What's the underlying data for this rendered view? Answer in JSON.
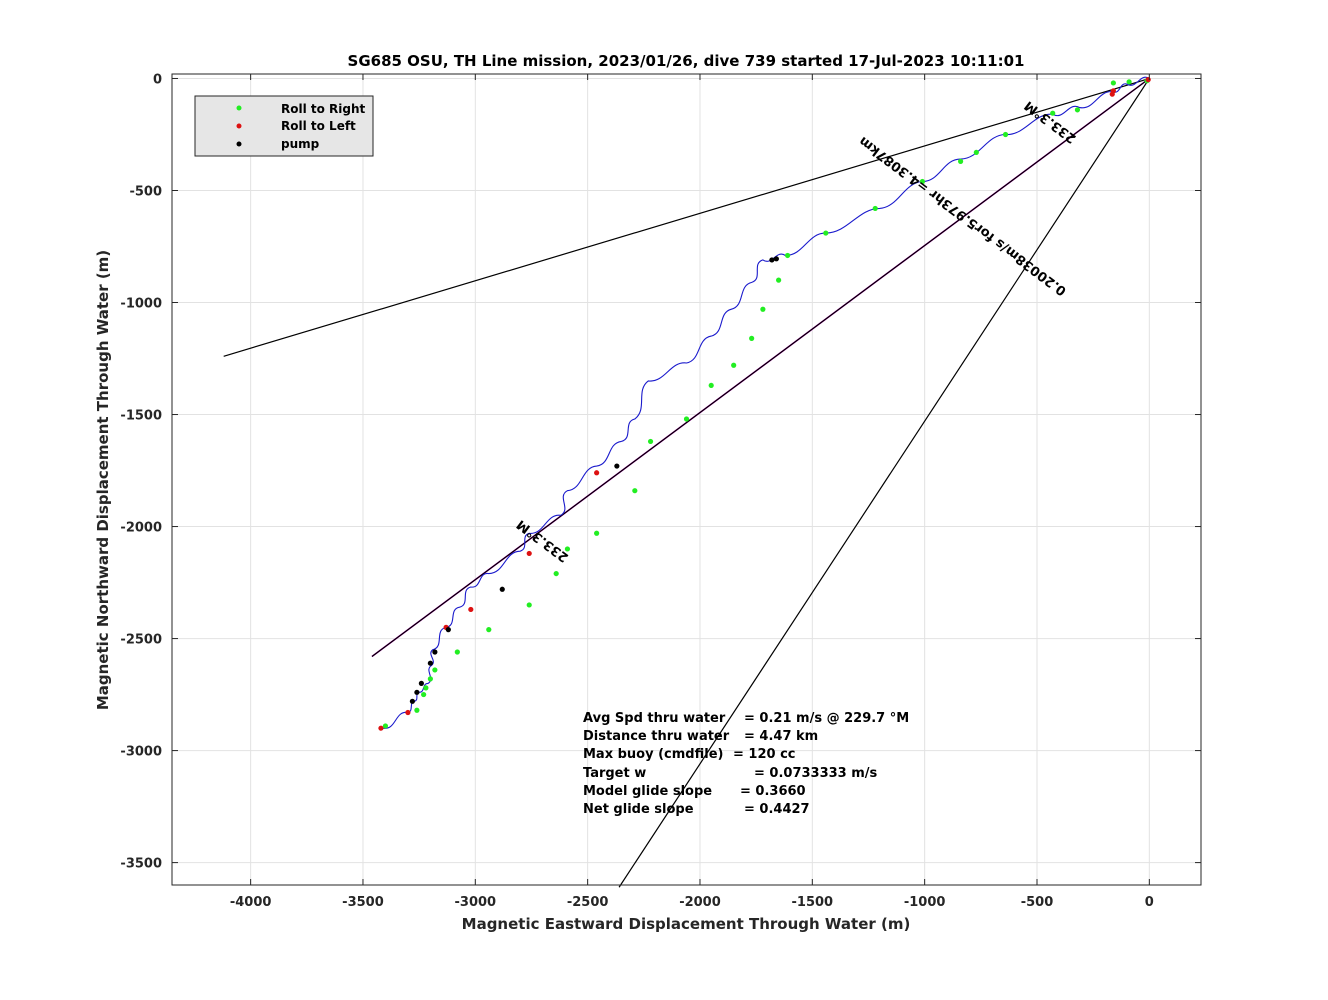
{
  "chart_data": {
    "type": "line",
    "title": "SG685 OSU, TH Line mission, 2023/01/26, dive 739 started 17-Jul-2023 10:11:01",
    "xlabel": "Magnetic Eastward Displacement Through Water (m)",
    "ylabel": "Magnetic Northward Displacement Through Water (m)",
    "xlim": [
      -4350,
      230
    ],
    "ylim": [
      -3600,
      20
    ],
    "xticks": [
      -4000,
      -3500,
      -3000,
      -2500,
      -2000,
      -1500,
      -1000,
      -500,
      0
    ],
    "yticks": [
      0,
      -500,
      -1000,
      -1500,
      -2000,
      -2500,
      -3000,
      -3500
    ],
    "grid": true,
    "legend_position": "top-left",
    "legend": [
      {
        "label": "Roll to Right",
        "color": "#22ee22"
      },
      {
        "label": "Roll to Left",
        "color": "#dd1111"
      },
      {
        "label": "pump",
        "color": "#000000"
      }
    ],
    "colors": {
      "track": "#1a1acc",
      "net": "#cc00cc",
      "bounds": "#000000"
    },
    "track": {
      "name": "",
      "x": [
        0,
        -100,
        -160,
        -310,
        -430,
        -640,
        -840,
        -1010,
        -1200,
        -1440,
        -1620,
        -1720,
        -1770,
        -1860,
        -1950,
        -2060,
        -2230,
        -2290,
        -2350,
        -2460,
        -2590,
        -2620,
        -2760,
        -2800,
        -2940,
        -3020,
        -3070,
        -3130,
        -3190,
        -3195,
        -3210,
        -3250,
        -3270,
        -3300,
        -3410
      ],
      "y": [
        0,
        -25,
        -60,
        -130,
        -160,
        -250,
        -360,
        -460,
        -580,
        -690,
        -790,
        -810,
        -910,
        -1030,
        -1150,
        -1270,
        -1350,
        -1520,
        -1620,
        -1730,
        -1840,
        -1950,
        -2030,
        -2110,
        -2210,
        -2270,
        -2360,
        -2450,
        -2550,
        -2620,
        -2700,
        -2740,
        -2780,
        -2830,
        -2900
      ]
    },
    "roll_right": {
      "x": [
        -10,
        -90,
        -160,
        -320,
        -430,
        -640,
        -770,
        -840,
        -1010,
        -1220,
        -1440,
        -1610,
        -1650,
        -1720,
        -1770,
        -1850,
        -1950,
        -2060,
        -2220,
        -2290,
        -2460,
        -2590,
        -2640,
        -2760,
        -2940,
        -3080,
        -3180,
        -3200,
        -3220,
        -3230,
        -3260,
        -3400
      ],
      "y": [
        -10,
        -15,
        -20,
        -140,
        -155,
        -250,
        -330,
        -370,
        -460,
        -580,
        -690,
        -790,
        -900,
        -1030,
        -1160,
        -1280,
        -1370,
        -1520,
        -1620,
        -1840,
        -2030,
        -2100,
        -2210,
        -2350,
        -2460,
        -2560,
        -2640,
        -2680,
        -2720,
        -2750,
        -2820,
        -2890
      ]
    },
    "roll_left": {
      "x": [
        -5,
        -160,
        -165,
        -2460,
        -2760,
        -3020,
        -3130,
        -3300,
        -3420
      ],
      "y": [
        -5,
        -55,
        -70,
        -1760,
        -2120,
        -2370,
        -2450,
        -2830,
        -2900
      ]
    },
    "pump": {
      "x": [
        -1660,
        -1680,
        -2370,
        -2880,
        -3120,
        -3180,
        -3200,
        -3240,
        -3260,
        -3280
      ],
      "y": [
        -805,
        -810,
        -1730,
        -2280,
        -2460,
        -2560,
        -2610,
        -2700,
        -2740,
        -2780
      ]
    },
    "lines": [
      {
        "name": "net",
        "x": [
          0,
          -3460
        ],
        "y": [
          0,
          -2580
        ]
      },
      {
        "name": "bound-upper",
        "x": [
          0,
          -4120
        ],
        "y": [
          0,
          -1240
        ]
      },
      {
        "name": "bound-lower",
        "x": [
          0,
          -2360
        ],
        "y": [
          0,
          -3610
        ]
      },
      {
        "name": "bound-mid",
        "x": [
          0,
          -3460
        ],
        "y": [
          0,
          -2580
        ]
      }
    ],
    "annotations": [
      {
        "text": "233.3°M",
        "x": -2690,
        "y": -2050,
        "angle": 36.9
      },
      {
        "text": "233.3°M",
        "x": -430,
        "y": -180,
        "angle": 36.9
      },
      {
        "text": "0.20038m/s for5.973hr =4.3087km",
        "x": -820,
        "y": -600,
        "angle": 36.9
      }
    ],
    "stats": {
      "label1": "Avg Spd thru water",
      "value1": "=  0.21 m/s @ 229.7 °M",
      "label2": "Distance thru water",
      "value2": "=  4.47 km",
      "label3": "Max buoy (cmdfile)",
      "value3": "= 120 cc",
      "label4": "Target w",
      "value4": "= 0.0733333 m/s",
      "label5": "Model glide slope",
      "value5": "= 0.3660",
      "label6": "Net glide slope",
      "value6": "= 0.4427"
    }
  }
}
